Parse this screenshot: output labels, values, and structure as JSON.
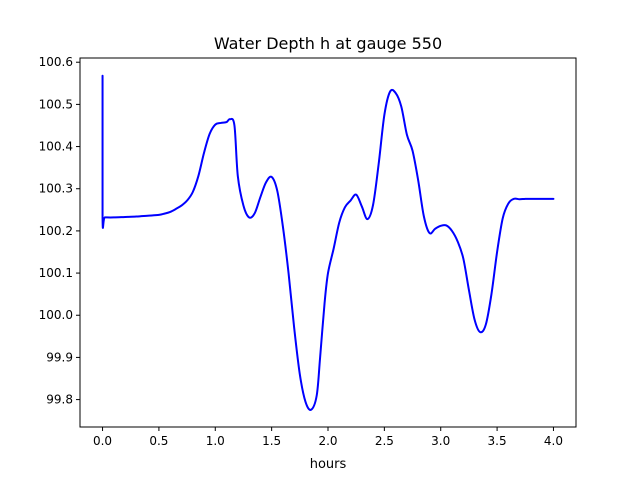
{
  "chart_data": {
    "type": "line",
    "title": "Water Depth h at gauge 550",
    "xlabel": "hours",
    "ylabel": "",
    "xlim": [
      -0.2,
      4.2
    ],
    "ylim": [
      99.735,
      100.61
    ],
    "x_ticks": [
      0.0,
      0.5,
      1.0,
      1.5,
      2.0,
      2.5,
      3.0,
      3.5,
      4.0
    ],
    "x_tick_labels": [
      "0.0",
      "0.5",
      "1.0",
      "1.5",
      "2.0",
      "2.5",
      "3.0",
      "3.5",
      "4.0"
    ],
    "y_ticks": [
      99.8,
      99.9,
      100.0,
      100.1,
      100.2,
      100.3,
      100.4,
      100.5,
      100.6
    ],
    "y_tick_labels": [
      "99.8",
      "99.9",
      "100.0",
      "100.1",
      "100.2",
      "100.3",
      "100.4",
      "100.5",
      "100.6"
    ],
    "grid": false,
    "legend": "none",
    "series": [
      {
        "color": "#0000ff",
        "x": [
          0.0,
          0.0,
          0.02,
          0.1,
          0.2,
          0.3,
          0.4,
          0.5,
          0.55,
          0.6,
          0.65,
          0.7,
          0.75,
          0.8,
          0.85,
          0.9,
          0.95,
          1.0,
          1.05,
          1.1,
          1.13,
          1.17,
          1.2,
          1.25,
          1.3,
          1.35,
          1.4,
          1.45,
          1.5,
          1.55,
          1.6,
          1.65,
          1.7,
          1.75,
          1.8,
          1.85,
          1.9,
          1.93,
          1.97,
          2.0,
          2.05,
          2.1,
          2.15,
          2.2,
          2.25,
          2.3,
          2.35,
          2.4,
          2.45,
          2.5,
          2.55,
          2.6,
          2.65,
          2.7,
          2.75,
          2.8,
          2.85,
          2.9,
          2.95,
          3.0,
          3.05,
          3.1,
          3.15,
          3.2,
          3.25,
          3.3,
          3.35,
          3.4,
          3.45,
          3.5,
          3.55,
          3.6,
          3.65,
          3.7,
          3.75,
          3.8,
          3.85,
          3.9,
          3.95,
          4.0
        ],
        "y": [
          100.568,
          100.232,
          100.232,
          100.232,
          100.233,
          100.234,
          100.236,
          100.238,
          100.241,
          100.245,
          100.252,
          100.26,
          100.272,
          100.292,
          100.33,
          100.385,
          100.43,
          100.452,
          100.456,
          100.458,
          100.465,
          100.45,
          100.33,
          100.26,
          100.232,
          100.242,
          100.28,
          100.315,
          100.328,
          100.295,
          100.21,
          100.1,
          99.97,
          99.86,
          99.795,
          99.776,
          99.81,
          99.9,
          100.03,
          100.1,
          100.158,
          100.22,
          100.256,
          100.272,
          100.286,
          100.258,
          100.228,
          100.262,
          100.36,
          100.475,
          100.53,
          100.527,
          100.495,
          100.428,
          100.39,
          100.32,
          100.235,
          100.195,
          100.205,
          100.212,
          100.213,
          100.2,
          100.175,
          100.135,
          100.06,
          99.99,
          99.96,
          99.978,
          100.05,
          100.15,
          100.23,
          100.265,
          100.276,
          100.275,
          100.276,
          100.276,
          100.276,
          100.276,
          100.276,
          100.276
        ]
      }
    ]
  }
}
